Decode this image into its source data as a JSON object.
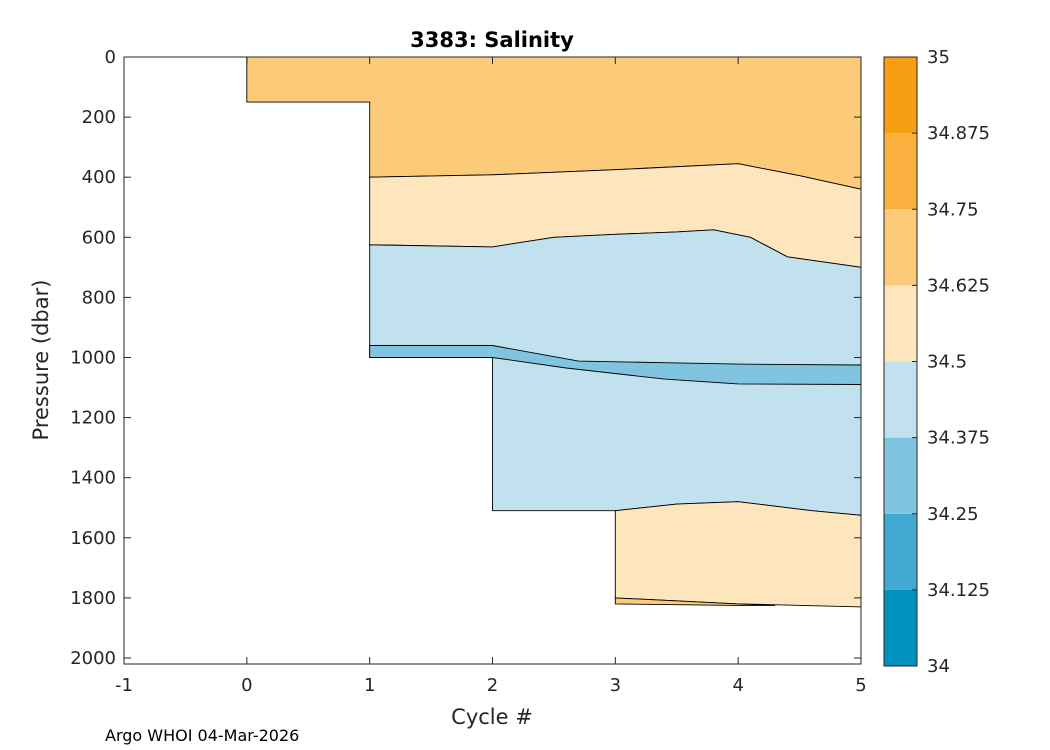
{
  "chart_data": {
    "type": "contour",
    "title": "3383:  Salinity",
    "xlabel": "Cycle #",
    "ylabel": "Pressure (dbar)",
    "xlim": [
      -1,
      5
    ],
    "ylim": [
      0,
      2020
    ],
    "y_reversed": true,
    "xticks": [
      "-1",
      "0",
      "1",
      "2",
      "3",
      "4",
      "5"
    ],
    "yticks": [
      "0",
      "200",
      "400",
      "600",
      "800",
      "1000",
      "1200",
      "1400",
      "1600",
      "1800",
      "2000"
    ],
    "colorbar": {
      "min": 34,
      "max": 35,
      "ticks": [
        "34",
        "34.125",
        "34.25",
        "34.375",
        "34.5",
        "34.625",
        "34.75",
        "34.875",
        "35"
      ],
      "colors": [
        "#0091bf",
        "#42a8d0",
        "#80c4df",
        "#c0e1ed",
        "#fde6bd",
        "#fbcb7a",
        "#fab03e",
        "#f89e12"
      ]
    },
    "profiles": [
      {
        "cycle": 0,
        "max_pressure": 150
      },
      {
        "cycle": 1,
        "max_pressure": 1000
      },
      {
        "cycle": 2,
        "max_pressure": 1510
      },
      {
        "cycle": 3,
        "max_pressure": 1820
      },
      {
        "cycle": 4,
        "max_pressure": 1825
      },
      {
        "cycle": 5,
        "max_pressure": 1830
      }
    ],
    "regions": [
      {
        "level": "34.625-34.75",
        "from_cycle": 0,
        "to_cycle": 5,
        "top": [
          [
            0,
            0
          ],
          [
            5,
            0
          ]
        ],
        "bottom": [
          [
            0,
            150
          ],
          [
            1,
            150
          ],
          [
            1,
            400
          ],
          [
            2,
            392
          ],
          [
            3,
            375
          ],
          [
            4,
            355
          ],
          [
            4.5,
            395
          ],
          [
            5,
            440
          ]
        ]
      },
      {
        "level": "34.5-34.625",
        "from_cycle": 1,
        "to_cycle": 5,
        "top": [
          [
            1,
            400
          ],
          [
            2,
            392
          ],
          [
            3,
            375
          ],
          [
            4,
            355
          ],
          [
            4.5,
            395
          ],
          [
            5,
            440
          ]
        ],
        "bottom": [
          [
            1,
            625
          ],
          [
            2,
            632
          ],
          [
            2.5,
            600
          ],
          [
            3,
            590
          ],
          [
            3.5,
            582
          ],
          [
            3.8,
            575
          ],
          [
            4.1,
            600
          ],
          [
            4.4,
            665
          ],
          [
            5,
            700
          ]
        ]
      },
      {
        "level": "34.375-34.5",
        "from_cycle": 1,
        "to_cycle": 5,
        "top": [
          [
            1,
            625
          ],
          [
            2,
            632
          ],
          [
            2.5,
            600
          ],
          [
            3,
            590
          ],
          [
            3.5,
            582
          ],
          [
            3.8,
            575
          ],
          [
            4.1,
            600
          ],
          [
            4.4,
            665
          ],
          [
            5,
            700
          ]
        ],
        "bottom": [
          [
            1,
            1000
          ],
          [
            2,
            1000
          ],
          [
            2,
            1510
          ],
          [
            3,
            1510
          ],
          [
            3.5,
            1488
          ],
          [
            4,
            1480
          ],
          [
            4.6,
            1510
          ],
          [
            5,
            1525
          ]
        ]
      },
      {
        "level": "34.25-34.375",
        "from_cycle": 1,
        "to_cycle": 5,
        "top": [
          [
            1,
            960
          ],
          [
            2,
            960
          ],
          [
            2.7,
            1012
          ],
          [
            3.5,
            1018
          ],
          [
            4,
            1022
          ],
          [
            5,
            1025
          ]
        ],
        "bottom": [
          [
            1,
            1000
          ],
          [
            2,
            1000
          ],
          [
            2.6,
            1035
          ],
          [
            3.4,
            1072
          ],
          [
            4,
            1088
          ],
          [
            5,
            1090
          ]
        ]
      },
      {
        "level": "34.5-34.625",
        "from_cycle": 3,
        "to_cycle": 5,
        "top": [
          [
            3,
            1510
          ],
          [
            3.5,
            1488
          ],
          [
            4,
            1480
          ],
          [
            4.6,
            1510
          ],
          [
            5,
            1525
          ]
        ],
        "bottom": [
          [
            3,
            1800
          ],
          [
            4,
            1820
          ],
          [
            5,
            1830
          ]
        ]
      },
      {
        "level": "34.625-34.75",
        "from_cycle": 3,
        "to_cycle": 4.3,
        "top": [
          [
            3,
            1800
          ],
          [
            4,
            1820
          ],
          [
            4.3,
            1825
          ]
        ],
        "bottom": [
          [
            3,
            1820
          ],
          [
            4,
            1825
          ],
          [
            4.3,
            1825
          ]
        ]
      }
    ]
  },
  "footer": {
    "text": "Argo WHOI 04-Mar-2026"
  }
}
